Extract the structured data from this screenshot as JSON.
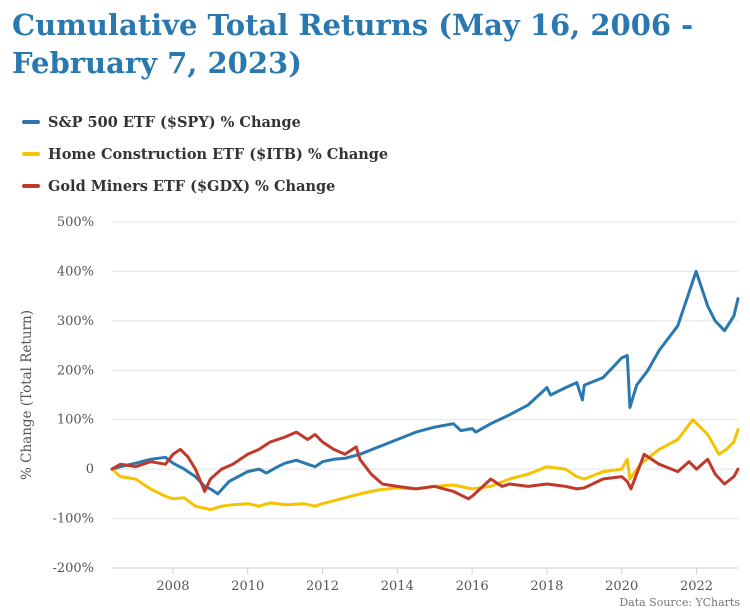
{
  "chart_data": {
    "type": "line",
    "title": "Cumulative Total Returns (May 16, 2006 - February 7, 2023)",
    "ylabel": "% Change (Total Return)",
    "xlabel": "",
    "x_ticks": [
      "2008",
      "2010",
      "2012",
      "2014",
      "2016",
      "2018",
      "2020",
      "2022"
    ],
    "y_ticks": [
      "500%",
      "400%",
      "300%",
      "200%",
      "100%",
      "0",
      "-100%",
      "-200%"
    ],
    "xlim": [
      2006.37,
      2023.11
    ],
    "ylim": [
      -200,
      500
    ],
    "grid": true,
    "legend_position": "top-left",
    "source": "Data Source: YCharts",
    "series": [
      {
        "name": "S&P 500 ETF ($SPY) % Change",
        "color": "#2a78b0",
        "x": [
          2006.37,
          2006.6,
          2007.0,
          2007.4,
          2007.8,
          2008.0,
          2008.3,
          2008.6,
          2008.85,
          2009.0,
          2009.2,
          2009.5,
          2010.0,
          2010.3,
          2010.5,
          2010.8,
          2011.0,
          2011.3,
          2011.6,
          2011.8,
          2012.0,
          2012.3,
          2012.6,
          2013.0,
          2013.5,
          2014.0,
          2014.5,
          2015.0,
          2015.5,
          2015.7,
          2016.0,
          2016.1,
          2016.5,
          2017.0,
          2017.5,
          2018.0,
          2018.1,
          2018.5,
          2018.8,
          2018.95,
          2019.0,
          2019.5,
          2020.0,
          2020.15,
          2020.22,
          2020.4,
          2020.7,
          2021.0,
          2021.5,
          2021.99,
          2022.3,
          2022.5,
          2022.75,
          2023.0,
          2023.11
        ],
        "y": [
          0,
          5,
          12,
          20,
          24,
          12,
          0,
          -15,
          -35,
          -40,
          -50,
          -25,
          -5,
          0,
          -8,
          5,
          12,
          18,
          10,
          5,
          15,
          20,
          22,
          30,
          45,
          60,
          75,
          85,
          92,
          78,
          82,
          75,
          92,
          110,
          130,
          165,
          150,
          165,
          175,
          140,
          170,
          185,
          225,
          230,
          125,
          170,
          200,
          240,
          290,
          400,
          330,
          300,
          280,
          310,
          345
        ]
      },
      {
        "name": "Home Construction ETF ($ITB) % Change",
        "color": "#f5c300",
        "x": [
          2006.37,
          2006.6,
          2007.0,
          2007.4,
          2007.8,
          2008.0,
          2008.3,
          2008.6,
          2008.9,
          2009.0,
          2009.3,
          2009.6,
          2010.0,
          2010.3,
          2010.6,
          2011.0,
          2011.5,
          2011.8,
          2012.0,
          2012.5,
          2013.0,
          2013.5,
          2014.0,
          2014.5,
          2015.0,
          2015.5,
          2016.0,
          2016.5,
          2017.0,
          2017.5,
          2018.0,
          2018.5,
          2018.8,
          2019.0,
          2019.5,
          2020.0,
          2020.15,
          2020.22,
          2020.5,
          2021.0,
          2021.5,
          2021.9,
          2022.3,
          2022.6,
          2022.8,
          2023.0,
          2023.11
        ],
        "y": [
          0,
          -15,
          -20,
          -40,
          -55,
          -60,
          -58,
          -75,
          -80,
          -82,
          -75,
          -72,
          -70,
          -75,
          -68,
          -72,
          -70,
          -75,
          -70,
          -60,
          -50,
          -42,
          -38,
          -40,
          -35,
          -32,
          -40,
          -35,
          -20,
          -10,
          5,
          0,
          -15,
          -20,
          -5,
          0,
          20,
          -20,
          10,
          40,
          60,
          100,
          70,
          30,
          40,
          55,
          80
        ]
      },
      {
        "name": "Gold Miners ETF ($GDX) % Change",
        "color": "#c0392b",
        "x": [
          2006.37,
          2006.6,
          2007.0,
          2007.4,
          2007.8,
          2008.0,
          2008.2,
          2008.4,
          2008.6,
          2008.85,
          2009.0,
          2009.3,
          2009.6,
          2010.0,
          2010.3,
          2010.6,
          2011.0,
          2011.3,
          2011.6,
          2011.8,
          2012.0,
          2012.3,
          2012.6,
          2012.9,
          2013.0,
          2013.3,
          2013.6,
          2014.0,
          2014.5,
          2015.0,
          2015.5,
          2015.9,
          2016.0,
          2016.5,
          2016.8,
          2017.0,
          2017.5,
          2018.0,
          2018.5,
          2018.8,
          2019.0,
          2019.5,
          2020.0,
          2020.15,
          2020.25,
          2020.5,
          2020.6,
          2021.0,
          2021.5,
          2021.8,
          2022.0,
          2022.3,
          2022.5,
          2022.75,
          2023.0,
          2023.11
        ],
        "y": [
          0,
          10,
          5,
          15,
          10,
          30,
          40,
          25,
          0,
          -45,
          -20,
          0,
          10,
          30,
          40,
          55,
          65,
          75,
          60,
          70,
          55,
          40,
          30,
          45,
          20,
          -10,
          -30,
          -35,
          -40,
          -35,
          -45,
          -60,
          -55,
          -20,
          -35,
          -30,
          -35,
          -30,
          -35,
          -40,
          -38,
          -20,
          -15,
          -25,
          -40,
          10,
          30,
          10,
          -5,
          15,
          0,
          20,
          -10,
          -30,
          -15,
          0
        ]
      }
    ]
  }
}
